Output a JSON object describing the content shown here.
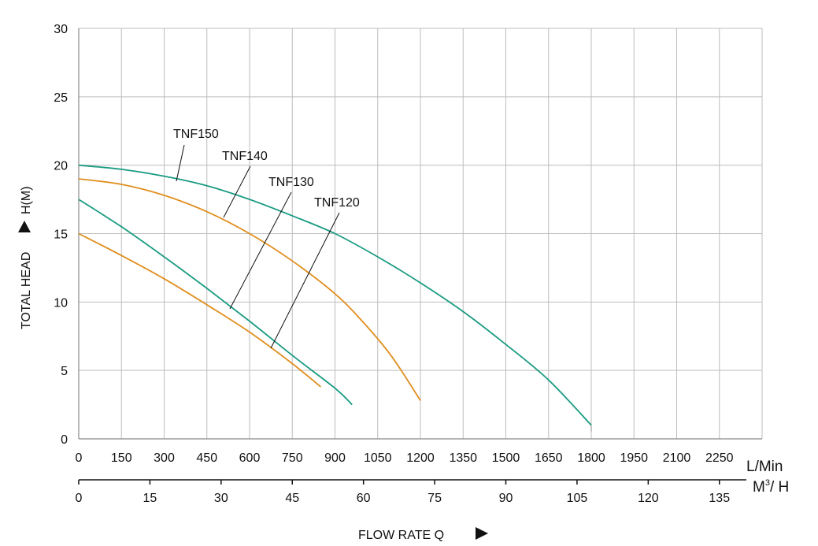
{
  "chart_data": {
    "type": "line",
    "xlabel": "FLOW RATE Q",
    "ylabel": "TOTAL HEAD",
    "ylabel_unit": "H(M)",
    "x_unit": "L/Min",
    "x2_unit_main": "M",
    "x2_unit_sup": "3",
    "x2_unit_tail": "/ H",
    "xlim": [
      0,
      2400
    ],
    "ylim": [
      0,
      30
    ],
    "grid": true,
    "x_ticks": [
      "0",
      "150",
      "300",
      "450",
      "600",
      "750",
      "900",
      "1050",
      "1200",
      "1350",
      "1500",
      "1650",
      "1800",
      "1950",
      "2100",
      "2250"
    ],
    "y_ticks": [
      "0",
      "5",
      "10",
      "15",
      "20",
      "25",
      "30"
    ],
    "x2_ticks": [
      "0",
      "15",
      "30",
      "45",
      "60",
      "75",
      "90",
      "105",
      "120",
      "135"
    ],
    "series": [
      {
        "name": "TNF150",
        "color": "#1a9b82",
        "points": [
          [
            0,
            20
          ],
          [
            150,
            19.7
          ],
          [
            300,
            19.2
          ],
          [
            450,
            18.5
          ],
          [
            600,
            17.5
          ],
          [
            750,
            16.3
          ],
          [
            900,
            15.0
          ],
          [
            1050,
            13.3
          ],
          [
            1200,
            11.4
          ],
          [
            1350,
            9.3
          ],
          [
            1500,
            6.9
          ],
          [
            1650,
            4.3
          ],
          [
            1800,
            1.0
          ]
        ]
      },
      {
        "name": "TNF140",
        "color": "#e08e1e",
        "points": [
          [
            0,
            19
          ],
          [
            150,
            18.6
          ],
          [
            300,
            17.8
          ],
          [
            450,
            16.6
          ],
          [
            600,
            15.0
          ],
          [
            750,
            13.0
          ],
          [
            900,
            10.6
          ],
          [
            1000,
            8.5
          ],
          [
            1100,
            6.0
          ],
          [
            1200,
            2.8
          ]
        ]
      },
      {
        "name": "TNF130",
        "color": "#1a9b82",
        "points": [
          [
            0,
            17.5
          ],
          [
            150,
            15.5
          ],
          [
            300,
            13.3
          ],
          [
            450,
            11.0
          ],
          [
            600,
            8.6
          ],
          [
            750,
            6.1
          ],
          [
            900,
            3.7
          ],
          [
            960,
            2.5
          ]
        ]
      },
      {
        "name": "TNF120",
        "color": "#e08e1e",
        "points": [
          [
            0,
            15
          ],
          [
            150,
            13.4
          ],
          [
            300,
            11.7
          ],
          [
            450,
            9.8
          ],
          [
            600,
            7.8
          ],
          [
            750,
            5.5
          ],
          [
            850,
            3.8
          ]
        ]
      }
    ]
  }
}
